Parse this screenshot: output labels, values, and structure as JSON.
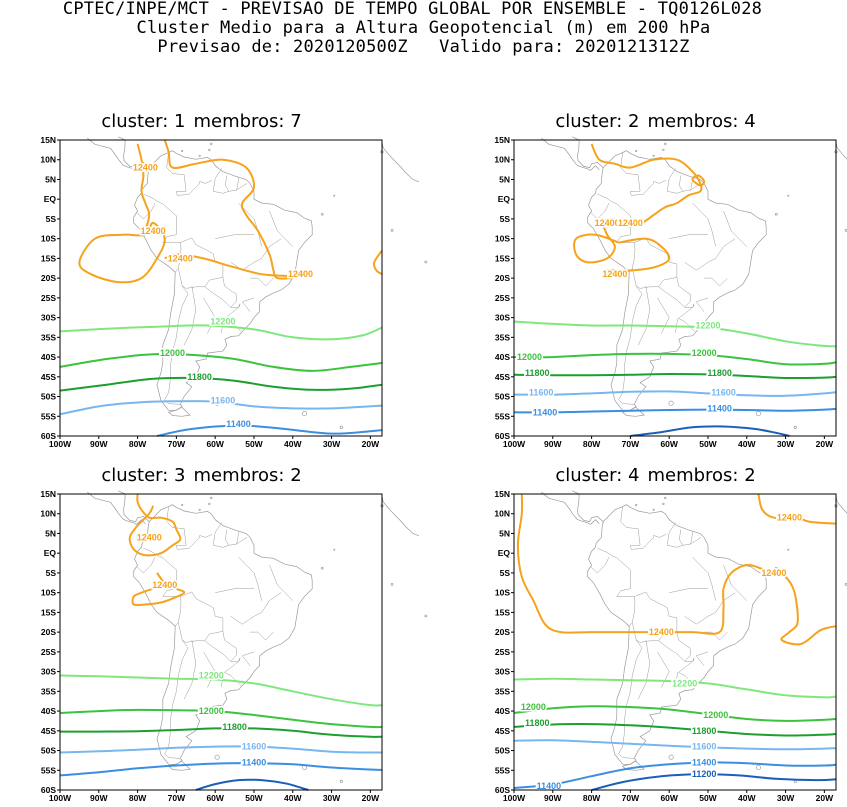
{
  "header": {
    "line1": "CPTEC/INPE/MCT - PREVISAO DE TEMPO GLOBAL POR ENSEMBLE - TQ0126L028",
    "line2": "Cluster Medio para a Altura Geopotencial (m) em 200 hPa",
    "line3_label": "Previsao de: 2020120500Z",
    "line3_valid": "Valido para: 2020121312Z"
  },
  "axes": {
    "lat_labels": [
      "15N",
      "10N",
      "5N",
      "EQ",
      "5S",
      "10S",
      "15S",
      "20S",
      "25S",
      "30S",
      "35S",
      "40S",
      "45S",
      "50S",
      "55S",
      "60S"
    ],
    "lon_labels": [
      "100W",
      "90W",
      "80W",
      "70W",
      "60W",
      "50W",
      "40W",
      "30W",
      "20W"
    ]
  },
  "colors": {
    "c12400": "#f7a21b",
    "c12200": "#7ee87e",
    "c12000": "#3cc23c",
    "c11800": "#1e9e2e",
    "c11600": "#7ab6ee",
    "c11400": "#3b8ee0",
    "c11200": "#1c5fb8",
    "coast": "#9a9a9a"
  },
  "panels": [
    {
      "title_cluster": "cluster: 1",
      "title_members": "membros: 7",
      "labels": [
        {
          "text": "12400",
          "lon": -78,
          "lat": 8,
          "level": "c12400"
        },
        {
          "text": "12400",
          "lon": -76,
          "lat": -8,
          "level": "c12400"
        },
        {
          "text": "12400",
          "lon": -69,
          "lat": -15,
          "level": "c12400"
        },
        {
          "text": "12400",
          "lon": -38,
          "lat": -19,
          "level": "c12400"
        },
        {
          "text": "12200",
          "lon": -58,
          "lat": -31,
          "level": "c12200"
        },
        {
          "text": "12000",
          "lon": -71,
          "lat": -39,
          "level": "c12000"
        },
        {
          "text": "11800",
          "lon": -64,
          "lat": -45,
          "level": "c11800"
        },
        {
          "text": "11600",
          "lon": -58,
          "lat": -51,
          "level": "c11600"
        },
        {
          "text": "11400",
          "lon": -54,
          "lat": -57,
          "level": "c11400"
        }
      ]
    },
    {
      "title_cluster": "cluster: 2",
      "title_members": "membros: 4",
      "labels": [
        {
          "text": "12400",
          "lon": -76,
          "lat": -6,
          "level": "c12400"
        },
        {
          "text": "12400",
          "lon": -70,
          "lat": -6,
          "level": "c12400"
        },
        {
          "text": "12400",
          "lon": -74,
          "lat": -19,
          "level": "c12400"
        },
        {
          "text": "12200",
          "lon": -50,
          "lat": -32,
          "level": "c12200"
        },
        {
          "text": "12000",
          "lon": -96,
          "lat": -40,
          "level": "c12000"
        },
        {
          "text": "12000",
          "lon": -51,
          "lat": -39,
          "level": "c12000"
        },
        {
          "text": "11800",
          "lon": -94,
          "lat": -44,
          "level": "c11800"
        },
        {
          "text": "11800",
          "lon": -47,
          "lat": -44,
          "level": "c11800"
        },
        {
          "text": "11600",
          "lon": -93,
          "lat": -49,
          "level": "c11600"
        },
        {
          "text": "11600",
          "lon": -46,
          "lat": -49,
          "level": "c11600"
        },
        {
          "text": "11400",
          "lon": -92,
          "lat": -54,
          "level": "c11400"
        },
        {
          "text": "11400",
          "lon": -47,
          "lat": -53,
          "level": "c11400"
        }
      ]
    },
    {
      "title_cluster": "cluster: 3",
      "title_members": "membros: 2",
      "labels": [
        {
          "text": "12400",
          "lon": -77,
          "lat": 4,
          "level": "c12400"
        },
        {
          "text": "12400",
          "lon": -73,
          "lat": -8,
          "level": "c12400"
        },
        {
          "text": "12200",
          "lon": -61,
          "lat": -31,
          "level": "c12200"
        },
        {
          "text": "12000",
          "lon": -61,
          "lat": -40,
          "level": "c12000"
        },
        {
          "text": "11800",
          "lon": -55,
          "lat": -44,
          "level": "c11800"
        },
        {
          "text": "11600",
          "lon": -50,
          "lat": -49,
          "level": "c11600"
        },
        {
          "text": "11400",
          "lon": -50,
          "lat": -53,
          "level": "c11400"
        }
      ]
    },
    {
      "title_cluster": "cluster: 4",
      "title_members": "membros: 2",
      "labels": [
        {
          "text": "12400",
          "lon": -29,
          "lat": 9,
          "level": "c12400"
        },
        {
          "text": "12400",
          "lon": -33,
          "lat": -5,
          "level": "c12400"
        },
        {
          "text": "12400",
          "lon": -62,
          "lat": -20,
          "level": "c12400"
        },
        {
          "text": "12200",
          "lon": -56,
          "lat": -33,
          "level": "c12200"
        },
        {
          "text": "12000",
          "lon": -95,
          "lat": -39,
          "level": "c12000"
        },
        {
          "text": "12000",
          "lon": -48,
          "lat": -41,
          "level": "c12000"
        },
        {
          "text": "11800",
          "lon": -94,
          "lat": -43,
          "level": "c11800"
        },
        {
          "text": "11800",
          "lon": -51,
          "lat": -45,
          "level": "c11800"
        },
        {
          "text": "11600",
          "lon": -51,
          "lat": -49,
          "level": "c11600"
        },
        {
          "text": "11400",
          "lon": -51,
          "lat": -53,
          "level": "c11400"
        },
        {
          "text": "11200",
          "lon": -51,
          "lat": -56,
          "level": "c11200"
        },
        {
          "text": "11400",
          "lon": -91,
          "lat": -59,
          "level": "c11400"
        }
      ]
    }
  ]
}
